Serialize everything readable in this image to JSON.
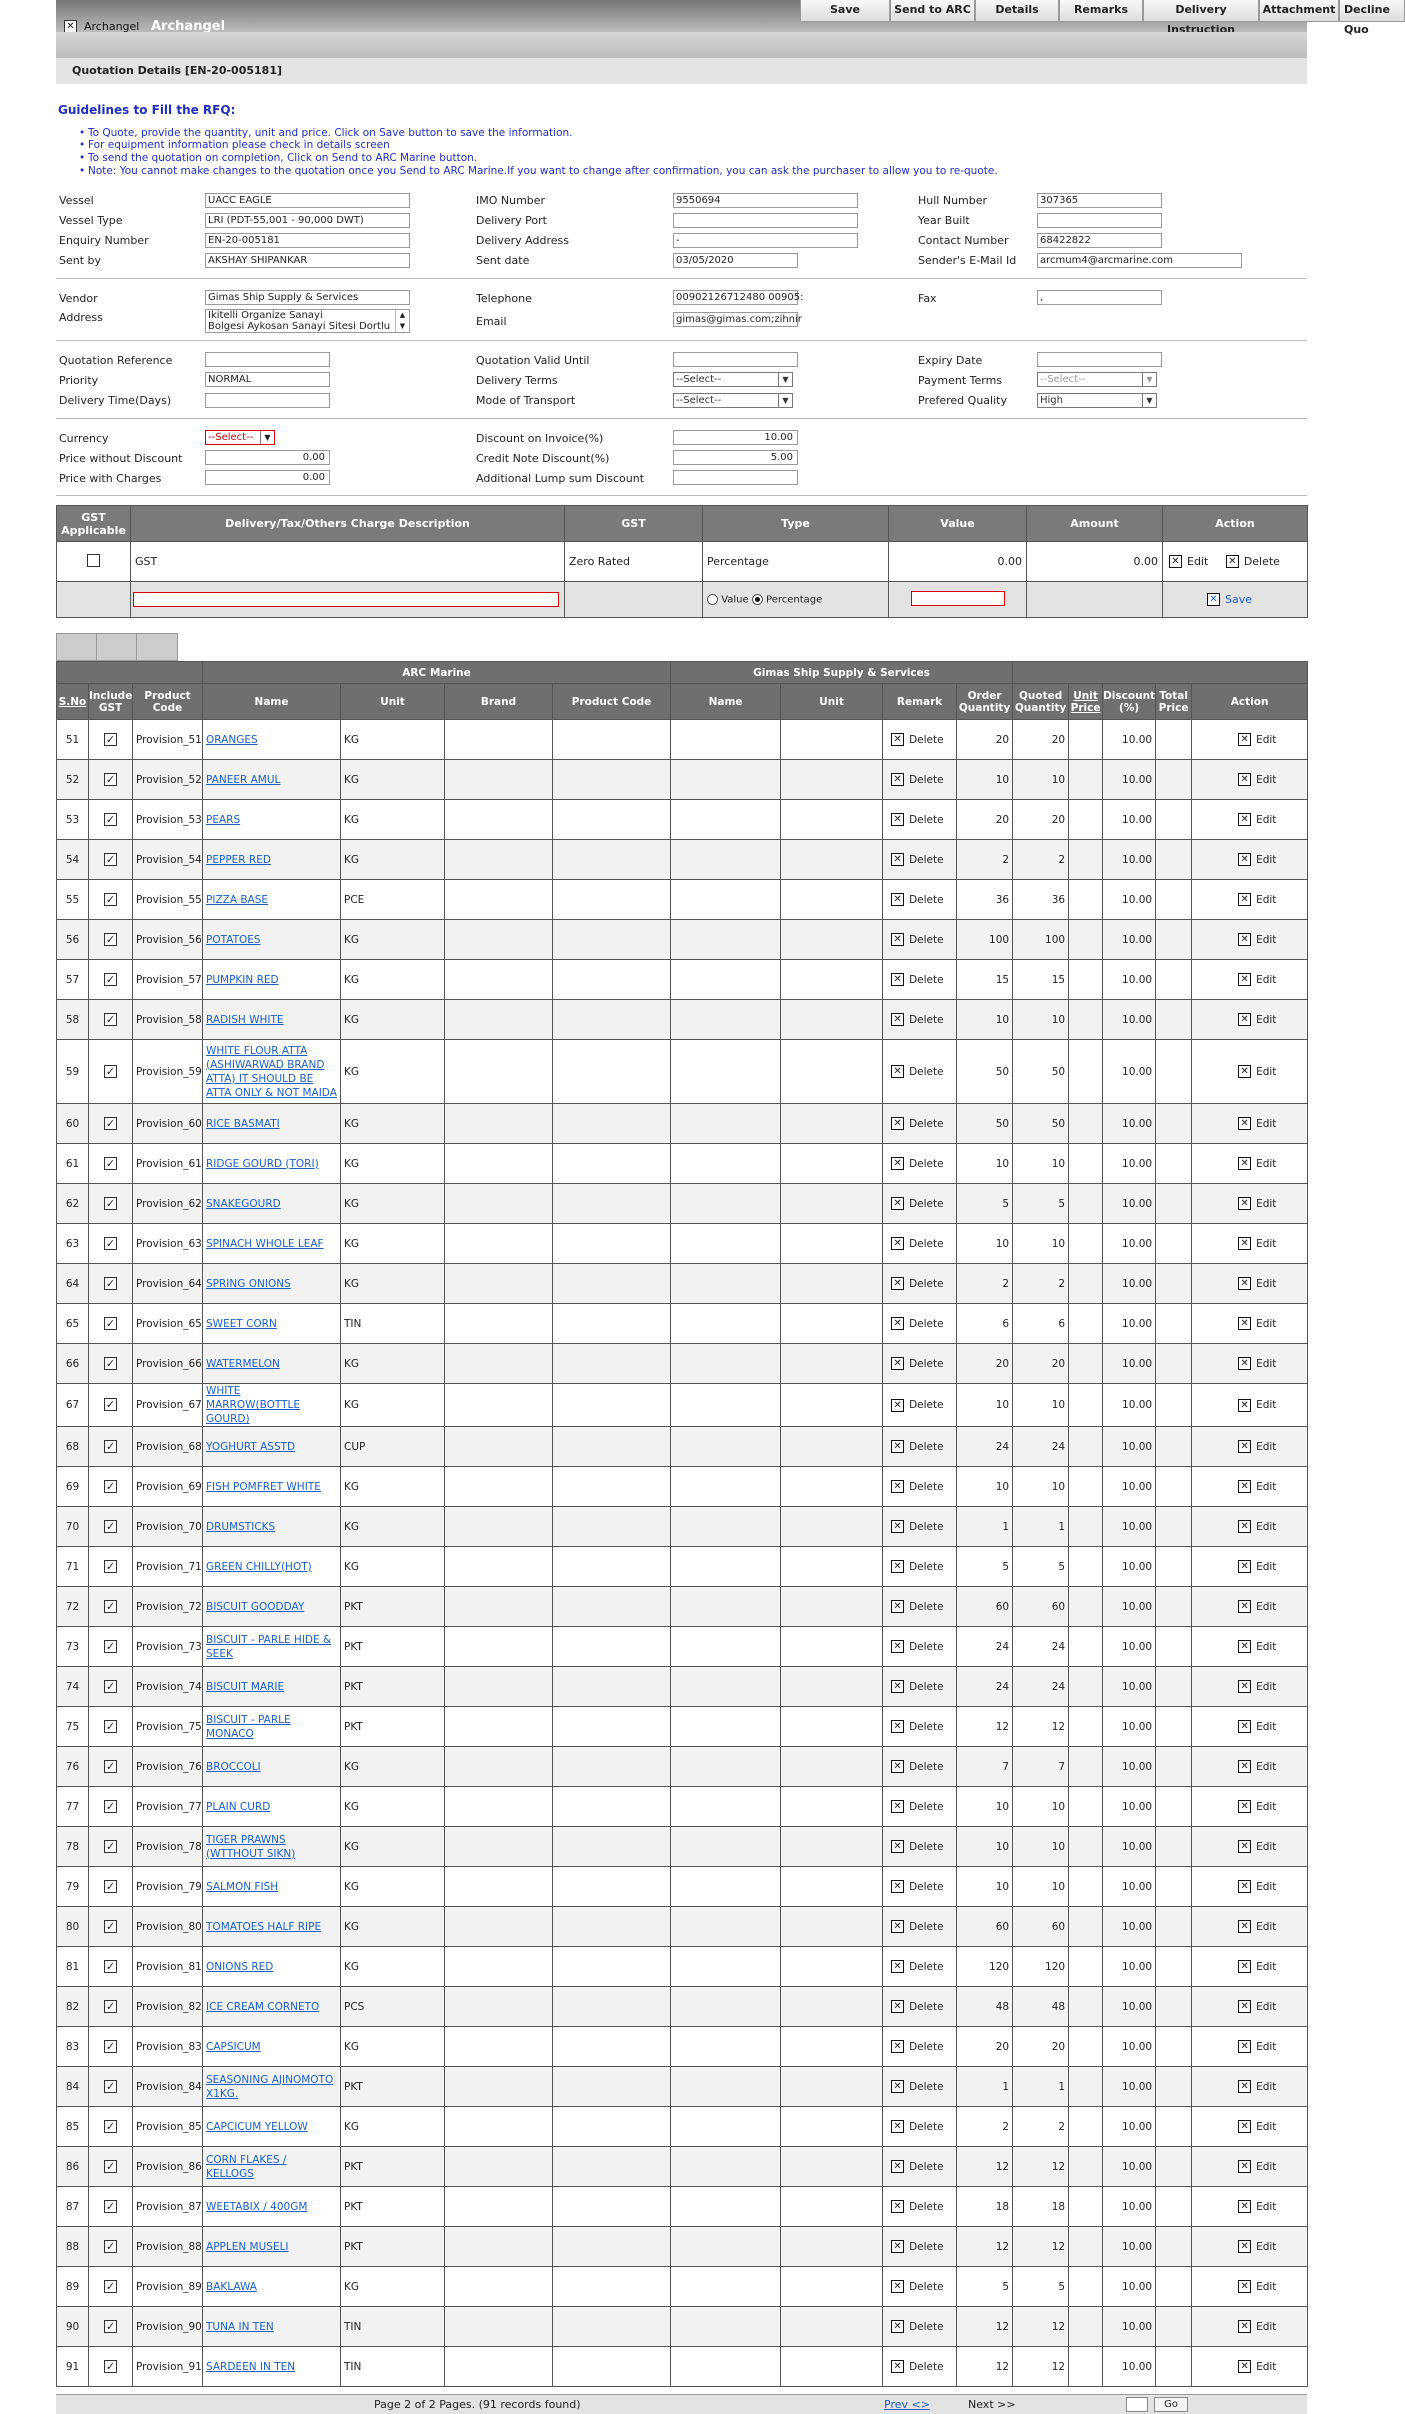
{
  "header": {
    "app_name": "Archangel",
    "app_title": "Archangel"
  },
  "menu": [
    "Save",
    "Send to ARC",
    "Details",
    "Remarks",
    "Delivery Instruction",
    "Attachment",
    "Decline Quo"
  ],
  "page_title": "Quotation Details [EN-20-005181]",
  "guidelines": {
    "title": "Guidelines to Fill the RFQ:",
    "items": [
      "To Quote, provide the quantity, unit and price. Click on Save button to save the information.",
      "For equipment information please check in details screen",
      "To send the quotation on completion, Click on Send to ARC Marine button.",
      "Note: You cannot make changes to the quotation once you Send to ARC Marine.If you want to change after confirmation, you can ask the purchaser to allow you to re-quote."
    ]
  },
  "info": {
    "vessel_l": "Vessel",
    "vessel": "UACC EAGLE",
    "imo_l": "IMO Number",
    "imo": "9550694",
    "hull_l": "Hull Number",
    "hull": "307365",
    "vtype_l": "Vessel Type",
    "vtype": "LRI (PDT-55,001 - 90,000 DWT)",
    "dport_l": "Delivery Port",
    "dport": "",
    "year_l": "Year Built",
    "year": "",
    "enq_l": "Enquiry Number",
    "enq": "EN-20-005181",
    "daddr_l": "Delivery Address",
    "daddr": "-",
    "contact_l": "Contact Number",
    "contact": "68422822",
    "sentby_l": "Sent by",
    "sentby": "AKSHAY SHIPANKAR",
    "sentdate_l": "Sent date",
    "sentdate": "03/05/2020",
    "email_id_l": "Sender's E-Mail Id",
    "email_id": "arcmum4@arcmarine.com",
    "vendor_l": "Vendor",
    "vendor": "Gimas Ship Supply & Services",
    "tel_l": "Telephone",
    "tel": "00902126712480 00905:",
    "fax_l": "Fax",
    "fax": ",",
    "addr_l": "Address",
    "addr1": "Ikitelli Organize Sanayi",
    "addr2": "Bolgesi Aykosan Sanayi Sitesi Dortlu",
    "email_l": "Email",
    "email": "gimas@gimas.com;zihnir",
    "qref_l": "Quotation Reference",
    "qref": "",
    "qvalid_l": "Quotation Valid Until",
    "qvalid": "",
    "exp_l": "Expiry Date",
    "exp": "",
    "prio_l": "Priority",
    "prio": "NORMAL",
    "dterms_l": "Delivery Terms",
    "dterms": "--Select--",
    "pterms_l": "Payment Terms",
    "pterms": "--Select--",
    "dtime_l": "Delivery Time(Days)",
    "dtime": "",
    "mode_l": "Mode of Transport",
    "mode": "--Select--",
    "pqual_l": "Prefered Quality",
    "pqual": "High",
    "cur_l": "Currency",
    "cur": "--Select--",
    "disc_l": "Discount on Invoice(%)",
    "disc": "10.00",
    "pwd_l": "Price without Discount",
    "pwd": "0.00",
    "cn_l": "Credit Note Discount(%)",
    "cn": "5.00",
    "pwc_l": "Price with Charges",
    "pwc": "0.00",
    "lump_l": "Additional Lump sum Discount",
    "lump": ""
  },
  "gst": {
    "h_app": "GST Applicable",
    "h_desc": "Delivery/Tax/Others Charge Description",
    "h_gst": "GST",
    "h_type": "Type",
    "h_value": "Value",
    "h_amount": "Amount",
    "h_action": "Action",
    "row_desc": "GST",
    "row_gst": "Zero Rated",
    "row_type": "Percentage",
    "row_value": "0.00",
    "row_amount": "0.00",
    "edit": "Edit",
    "delete": "Delete",
    "r_value": "Value",
    "r_pct": "Percentage",
    "save": "Save"
  },
  "items_head": {
    "arc": "ARC Marine",
    "vendor": "Gimas Ship Supply & Services",
    "sno": "S.No",
    "gst": "Include GST",
    "pcode": "Product Code",
    "name": "Name",
    "unit": "Unit",
    "brand": "Brand",
    "pcode2": "Product Code",
    "name2": "Name",
    "unit2": "Unit",
    "remark": "Remark",
    "oqty": "Order Quantity",
    "qqty": "Quoted Quantity",
    "uprice": "Unit Price",
    "disc": "Discount (%)",
    "total": "Total Price",
    "action": "Action"
  },
  "row_labels": {
    "delete": "Delete",
    "edit": "Edit"
  },
  "items": [
    [
      "51",
      "Provision_51",
      "ORANGES",
      "KG",
      "20",
      "20",
      "10.00"
    ],
    [
      "52",
      "Provision_52",
      "PANEER AMUL",
      "KG",
      "10",
      "10",
      "10.00"
    ],
    [
      "53",
      "Provision_53",
      "PEARS",
      "KG",
      "20",
      "20",
      "10.00"
    ],
    [
      "54",
      "Provision_54",
      "PEPPER RED",
      "KG",
      "2",
      "2",
      "10.00"
    ],
    [
      "55",
      "Provision_55",
      "PIZZA BASE",
      "PCE",
      "36",
      "36",
      "10.00"
    ],
    [
      "56",
      "Provision_56",
      "POTATOES",
      "KG",
      "100",
      "100",
      "10.00"
    ],
    [
      "57",
      "Provision_57",
      "PUMPKIN RED",
      "KG",
      "15",
      "15",
      "10.00"
    ],
    [
      "58",
      "Provision_58",
      "RADISH WHITE",
      "KG",
      "10",
      "10",
      "10.00"
    ],
    [
      "59",
      "Provision_59",
      "WHITE FLOUR ATTA (ASHIWARWAD BRAND ATTA) IT SHOULD BE ATTA ONLY & NOT MAIDA",
      "KG",
      "50",
      "50",
      "10.00"
    ],
    [
      "60",
      "Provision_60",
      "RICE BASMATI",
      "KG",
      "50",
      "50",
      "10.00"
    ],
    [
      "61",
      "Provision_61",
      "RIDGE GOURD (TORI)",
      "KG",
      "10",
      "10",
      "10.00"
    ],
    [
      "62",
      "Provision_62",
      "SNAKEGOURD",
      "KG",
      "5",
      "5",
      "10.00"
    ],
    [
      "63",
      "Provision_63",
      "SPINACH WHOLE LEAF",
      "KG",
      "10",
      "10",
      "10.00"
    ],
    [
      "64",
      "Provision_64",
      "SPRING ONIONS",
      "KG",
      "2",
      "2",
      "10.00"
    ],
    [
      "65",
      "Provision_65",
      "SWEET CORN",
      "TIN",
      "6",
      "6",
      "10.00"
    ],
    [
      "66",
      "Provision_66",
      "WATERMELON",
      "KG",
      "20",
      "20",
      "10.00"
    ],
    [
      "67",
      "Provision_67",
      "WHITE MARROW(BOTTLE GOURD)",
      "KG",
      "10",
      "10",
      "10.00"
    ],
    [
      "68",
      "Provision_68",
      "YOGHURT ASSTD",
      "CUP",
      "24",
      "24",
      "10.00"
    ],
    [
      "69",
      "Provision_69",
      "FISH POMFRET WHITE",
      "KG",
      "10",
      "10",
      "10.00"
    ],
    [
      "70",
      "Provision_70",
      "DRUMSTICKS",
      "KG",
      "1",
      "1",
      "10.00"
    ],
    [
      "71",
      "Provision_71",
      "GREEN CHILLY(HOT)",
      "KG",
      "5",
      "5",
      "10.00"
    ],
    [
      "72",
      "Provision_72",
      "BISCUIT GOODDAY",
      "PKT",
      "60",
      "60",
      "10.00"
    ],
    [
      "73",
      "Provision_73",
      "BISCUIT - PARLE HIDE & SEEK",
      "PKT",
      "24",
      "24",
      "10.00"
    ],
    [
      "74",
      "Provision_74",
      "BISCUIT MARIE",
      "PKT",
      "24",
      "24",
      "10.00"
    ],
    [
      "75",
      "Provision_75",
      "BISCUIT - PARLE MONACO",
      "PKT",
      "12",
      "12",
      "10.00"
    ],
    [
      "76",
      "Provision_76",
      "BROCCOLI",
      "KG",
      "7",
      "7",
      "10.00"
    ],
    [
      "77",
      "Provision_77",
      "PLAIN CURD",
      "KG",
      "10",
      "10",
      "10.00"
    ],
    [
      "78",
      "Provision_78",
      "TIGER PRAWNS (WTTHOUT SIKN)",
      "KG",
      "10",
      "10",
      "10.00"
    ],
    [
      "79",
      "Provision_79",
      "SALMON FISH",
      "KG",
      "10",
      "10",
      "10.00"
    ],
    [
      "80",
      "Provision_80",
      "TOMATOES HALF RIPE",
      "KG",
      "60",
      "60",
      "10.00"
    ],
    [
      "81",
      "Provision_81",
      "ONIONS RED",
      "KG",
      "120",
      "120",
      "10.00"
    ],
    [
      "82",
      "Provision_82",
      "ICE CREAM CORNETO",
      "PCS",
      "48",
      "48",
      "10.00"
    ],
    [
      "83",
      "Provision_83",
      "CAPSICUM",
      "KG",
      "20",
      "20",
      "10.00"
    ],
    [
      "84",
      "Provision_84",
      "SEASONING AJINOMOTO X1KG.",
      "PKT",
      "1",
      "1",
      "10.00"
    ],
    [
      "85",
      "Provision_85",
      "CAPCICUM YELLOW",
      "KG",
      "2",
      "2",
      "10.00"
    ],
    [
      "86",
      "Provision_86",
      "CORN FLAKES / KELLOGS",
      "PKT",
      "12",
      "12",
      "10.00"
    ],
    [
      "87",
      "Provision_87",
      "WEETABIX / 400GM",
      "PKT",
      "18",
      "18",
      "10.00"
    ],
    [
      "88",
      "Provision_88",
      "APPLEN MUSELI",
      "PKT",
      "12",
      "12",
      "10.00"
    ],
    [
      "89",
      "Provision_89",
      "BAKLAWA",
      "KG",
      "5",
      "5",
      "10.00"
    ],
    [
      "90",
      "Provision_90",
      "TUNA IN TEN",
      "TIN",
      "12",
      "12",
      "10.00"
    ],
    [
      "91",
      "Provision_91",
      "SARDEEN IN TEN",
      "TIN",
      "12",
      "12",
      "10.00"
    ]
  ],
  "footer": {
    "pages": "Page 2 of 2 Pages. (91 records found)",
    "prev": "Prev <>",
    "next": "Next >>",
    "go": "Go"
  }
}
